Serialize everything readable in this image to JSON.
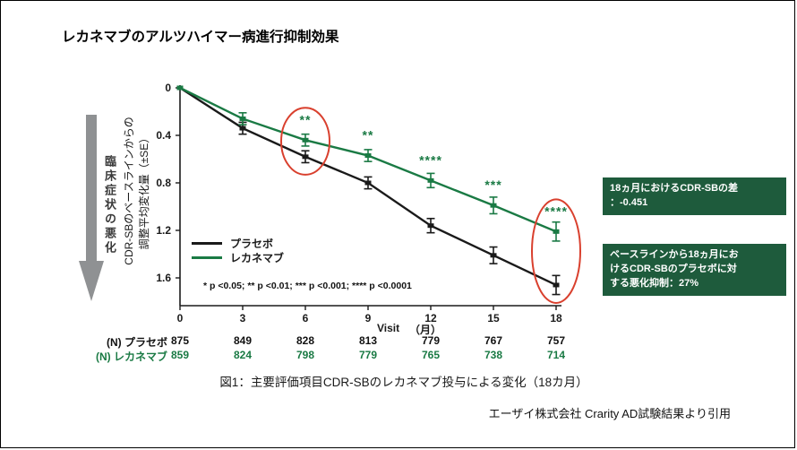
{
  "title": "レカネマブのアルツハイマー病進行抑制効果",
  "y_axis": {
    "label_line1": "CDR-SBのベースラインからの",
    "label_line2": "調整平均変化量（±SE）",
    "worsening_label": "臨床症状の悪化"
  },
  "x_axis": {
    "visit_label": "Visit",
    "month_label": "（月）"
  },
  "significance_footnote": "* p <0.05; ** p <0.01; *** p <0.001; **** p <0.0001",
  "annotation_boxes": {
    "diff_box": "18ヵ月におけるCDR-SBの差\n：-0.451",
    "suppression_box": "ベースラインから18ヵ月にお\nけるCDR-SBのプラセボに対\nする悪化抑制：27%"
  },
  "n_table": {
    "placebo_label": "(N) プラセボ",
    "lecanemab_label": "(N) レカネマブ",
    "placebo": [
      "875",
      "849",
      "828",
      "813",
      "779",
      "767",
      "757"
    ],
    "lecanemab": [
      "859",
      "824",
      "798",
      "779",
      "765",
      "738",
      "714"
    ]
  },
  "caption": "図1：主要評価項目CDR-SBのレカネマブ投与による変化（18カ月）",
  "source": "エーザイ株式会社 Crarity AD試験結果より引用",
  "colors": {
    "lecanemab_green": "#1a7a44",
    "placebo_black": "#1a1a1a",
    "annotation_box_green": "#1e5b3c",
    "highlight_red": "#d9402e",
    "arrow_gray": "#8f9193"
  },
  "chart_data": {
    "type": "line",
    "x": [
      0,
      3,
      6,
      9,
      12,
      15,
      18
    ],
    "xlabel": "Visit（月）",
    "ylabel": "CDR-SBのベースラインからの調整平均変化量（±SE）",
    "ylim": [
      0,
      1.6
    ],
    "y_inverted": true,
    "yticks": [
      0,
      0.4,
      0.8,
      1.2,
      1.6
    ],
    "grid": false,
    "legend_position": "lower-left-inside",
    "series": [
      {
        "name": "プラセボ",
        "color": "#1a1a1a",
        "values": [
          0,
          0.34,
          0.58,
          0.8,
          1.16,
          1.41,
          1.66
        ],
        "se": [
          0,
          0.05,
          0.05,
          0.05,
          0.06,
          0.07,
          0.08
        ]
      },
      {
        "name": "レカネマブ",
        "color": "#1a7a44",
        "values": [
          0,
          0.26,
          0.44,
          0.57,
          0.78,
          0.99,
          1.21
        ],
        "se": [
          0,
          0.05,
          0.05,
          0.05,
          0.06,
          0.07,
          0.08
        ]
      }
    ],
    "significance": [
      "",
      "",
      "**",
      "**",
      "****",
      "***",
      "****"
    ],
    "highlight_ellipses_months": [
      6,
      18
    ],
    "annotations": [
      "18ヵ月におけるCDR-SBの差：-0.451",
      "ベースラインから18ヵ月におけるCDR-SBのプラセボに対する悪化抑制：27%"
    ]
  }
}
